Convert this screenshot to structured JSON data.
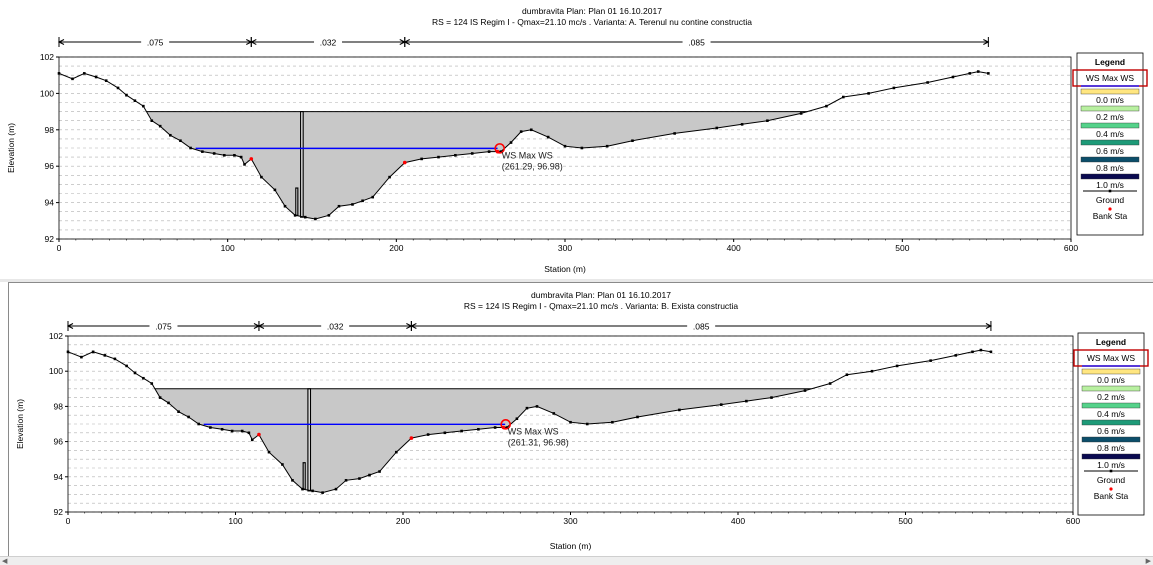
{
  "colors": {
    "water_fill": "#c8c8c8",
    "ground": "#000000",
    "ws_line": "#0000ff",
    "bank_sta": "#ff0000",
    "marker": "#ff0000",
    "legend_box_border": "#c00000",
    "ws_legend_line": "#0000ff"
  },
  "legend": {
    "title": "Legend",
    "ws_label": "WS Max WS",
    "velocity_labels": [
      "0.0 m/s",
      "0.2 m/s",
      "0.4 m/s",
      "0.6 m/s",
      "0.8 m/s",
      "1.0 m/s"
    ],
    "velocity_colors": [
      "#ffe680",
      "#b8f0a0",
      "#55d28a",
      "#1e9a78",
      "#0c4e6a",
      "#0a0a50"
    ],
    "ground_label": "Ground",
    "bank_label": "Bank Sta"
  },
  "chart_data": [
    {
      "type": "line",
      "title": "dumbravita      Plan: Plan 01    16.10.2017",
      "subtitle": "RS = 124    IS    Regim I -  Qmax=21.10 mc/s . Varianta: A. Terenul nu contine  constructia",
      "xlabel": "Station (m)",
      "ylabel": "Elevation (m)",
      "xlim": [
        0,
        600
      ],
      "ylim": [
        92,
        102
      ],
      "x_ticks": [
        0,
        100,
        200,
        300,
        400,
        500,
        600
      ],
      "y_ticks": [
        92,
        94,
        96,
        98,
        100,
        102
      ],
      "grid": true,
      "legend_position": "right",
      "roughness": [
        {
          "label": ".075",
          "from": 0,
          "to": 114
        },
        {
          "label": ".032",
          "from": 114,
          "to": 205
        },
        {
          "label": ".085",
          "from": 205,
          "to": 551
        }
      ],
      "water_surface": {
        "name": "WS Max WS",
        "elevation": 96.98,
        "from": 81,
        "to": 260
      },
      "flooded_level": 99.0,
      "annotation": {
        "label": "WS Max WS",
        "coords": "(261.29, 96.98)",
        "x": 261.29,
        "y": 96.98
      },
      "bank_stations": [
        [
          114,
          96.4
        ],
        [
          205,
          96.2
        ],
        [
          260,
          96.8
        ]
      ],
      "ground": [
        [
          0,
          101.1
        ],
        [
          8,
          100.8
        ],
        [
          15,
          101.1
        ],
        [
          22,
          100.9
        ],
        [
          28,
          100.7
        ],
        [
          35,
          100.3
        ],
        [
          40,
          99.9
        ],
        [
          45,
          99.6
        ],
        [
          50,
          99.3
        ],
        [
          55,
          98.5
        ],
        [
          60,
          98.2
        ],
        [
          66,
          97.7
        ],
        [
          72,
          97.4
        ],
        [
          78,
          97.0
        ],
        [
          85,
          96.8
        ],
        [
          92,
          96.7
        ],
        [
          98,
          96.6
        ],
        [
          104,
          96.6
        ],
        [
          108,
          96.5
        ],
        [
          110,
          96.1
        ],
        [
          114,
          96.4
        ],
        [
          120,
          95.4
        ],
        [
          128,
          94.7
        ],
        [
          134,
          93.8
        ],
        [
          140,
          93.3
        ],
        [
          146,
          93.2
        ],
        [
          152,
          93.1
        ],
        [
          160,
          93.3
        ],
        [
          166,
          93.8
        ],
        [
          174,
          93.9
        ],
        [
          180,
          94.1
        ],
        [
          186,
          94.3
        ],
        [
          196,
          95.4
        ],
        [
          205,
          96.2
        ],
        [
          215,
          96.4
        ],
        [
          225,
          96.5
        ],
        [
          235,
          96.6
        ],
        [
          245,
          96.7
        ],
        [
          255,
          96.8
        ],
        [
          262,
          96.8
        ],
        [
          268,
          97.3
        ],
        [
          274,
          97.9
        ],
        [
          280,
          98.0
        ],
        [
          290,
          97.6
        ],
        [
          300,
          97.1
        ],
        [
          310,
          97.0
        ],
        [
          325,
          97.1
        ],
        [
          340,
          97.4
        ],
        [
          365,
          97.8
        ],
        [
          390,
          98.1
        ],
        [
          405,
          98.3
        ],
        [
          420,
          98.5
        ],
        [
          440,
          98.9
        ],
        [
          455,
          99.3
        ],
        [
          465,
          99.8
        ],
        [
          480,
          100.0
        ],
        [
          495,
          100.3
        ],
        [
          515,
          100.6
        ],
        [
          530,
          100.9
        ],
        [
          540,
          101.1
        ],
        [
          545,
          101.2
        ],
        [
          551,
          101.1
        ]
      ],
      "obstruction": [
        {
          "x": 144,
          "top": 99.0,
          "bottom": 93.2
        },
        {
          "x": 141,
          "top": 94.8,
          "bottom": 93.3
        }
      ]
    },
    {
      "type": "line",
      "title": "dumbravita      Plan: Plan 01    16.10.2017",
      "subtitle": "RS = 124    IS    Regim I -  Qmax=21.10 mc/s . Varianta: B. Exista constructia",
      "xlabel": "Station (m)",
      "ylabel": "Elevation (m)",
      "xlim": [
        0,
        600
      ],
      "ylim": [
        92,
        102
      ],
      "x_ticks": [
        0,
        100,
        200,
        300,
        400,
        500,
        600
      ],
      "y_ticks": [
        92,
        94,
        96,
        98,
        100,
        102
      ],
      "grid": true,
      "legend_position": "right",
      "roughness": [
        {
          "label": ".075",
          "from": 0,
          "to": 114
        },
        {
          "label": ".032",
          "from": 114,
          "to": 205
        },
        {
          "label": ".085",
          "from": 205,
          "to": 551
        }
      ],
      "water_surface": {
        "name": "WS Max WS",
        "elevation": 96.98,
        "from": 81,
        "to": 261
      },
      "flooded_level": 99.0,
      "annotation": {
        "label": "WS Max WS",
        "coords": "(261.31, 96.98)",
        "x": 261.31,
        "y": 96.98
      },
      "bank_stations": [
        [
          114,
          96.4
        ],
        [
          205,
          96.2
        ],
        [
          260,
          96.8
        ]
      ],
      "ground": [
        [
          0,
          101.1
        ],
        [
          8,
          100.8
        ],
        [
          15,
          101.1
        ],
        [
          22,
          100.9
        ],
        [
          28,
          100.7
        ],
        [
          35,
          100.3
        ],
        [
          40,
          99.9
        ],
        [
          45,
          99.6
        ],
        [
          50,
          99.3
        ],
        [
          55,
          98.5
        ],
        [
          60,
          98.2
        ],
        [
          66,
          97.7
        ],
        [
          72,
          97.4
        ],
        [
          78,
          97.0
        ],
        [
          85,
          96.8
        ],
        [
          92,
          96.7
        ],
        [
          98,
          96.6
        ],
        [
          104,
          96.6
        ],
        [
          108,
          96.5
        ],
        [
          110,
          96.1
        ],
        [
          114,
          96.4
        ],
        [
          120,
          95.4
        ],
        [
          128,
          94.7
        ],
        [
          134,
          93.8
        ],
        [
          140,
          93.3
        ],
        [
          146,
          93.2
        ],
        [
          152,
          93.1
        ],
        [
          160,
          93.3
        ],
        [
          166,
          93.8
        ],
        [
          174,
          93.9
        ],
        [
          180,
          94.1
        ],
        [
          186,
          94.3
        ],
        [
          196,
          95.4
        ],
        [
          205,
          96.2
        ],
        [
          215,
          96.4
        ],
        [
          225,
          96.5
        ],
        [
          235,
          96.6
        ],
        [
          245,
          96.7
        ],
        [
          255,
          96.8
        ],
        [
          262,
          96.8
        ],
        [
          268,
          97.3
        ],
        [
          274,
          97.9
        ],
        [
          280,
          98.0
        ],
        [
          290,
          97.6
        ],
        [
          300,
          97.1
        ],
        [
          310,
          97.0
        ],
        [
          325,
          97.1
        ],
        [
          340,
          97.4
        ],
        [
          365,
          97.8
        ],
        [
          390,
          98.1
        ],
        [
          405,
          98.3
        ],
        [
          420,
          98.5
        ],
        [
          440,
          98.9
        ],
        [
          455,
          99.3
        ],
        [
          465,
          99.8
        ],
        [
          480,
          100.0
        ],
        [
          495,
          100.3
        ],
        [
          515,
          100.6
        ],
        [
          530,
          100.9
        ],
        [
          540,
          101.1
        ],
        [
          545,
          101.2
        ],
        [
          551,
          101.1
        ]
      ],
      "obstruction": [
        {
          "x": 144,
          "top": 99.0,
          "bottom": 93.2
        },
        {
          "x": 141,
          "top": 94.8,
          "bottom": 93.3
        }
      ]
    }
  ]
}
